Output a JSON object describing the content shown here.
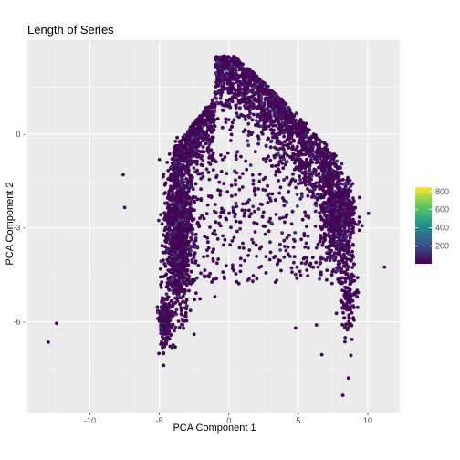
{
  "chart_data": {
    "type": "scatter",
    "title": "Length of Series",
    "xlabel": "PCA Component 1",
    "ylabel": "PCA Component 2",
    "xlim": [
      -14.5,
      12.3
    ],
    "ylim": [
      -8.9,
      3.0
    ],
    "x_ticks": [
      -10,
      -5,
      0,
      5,
      10
    ],
    "y_ticks": [
      -6,
      -3,
      0
    ],
    "y_tick_labels": [
      "-6 -",
      "-3 -",
      "0 -"
    ],
    "grid": true,
    "panel_background": "#ebebeb",
    "colorbar": {
      "palette": "viridis",
      "range": [
        1,
        850
      ],
      "ticks": [
        200,
        400,
        600,
        800
      ],
      "placement": "right"
    },
    "colors": {
      "low": "#440154",
      "mid_low": "#3b528b",
      "mid": "#21908c",
      "mid_high": "#5dc863",
      "high": "#fde725"
    },
    "isolated_points": [
      {
        "x": -13.0,
        "y": -6.65,
        "v": 5
      },
      {
        "x": -12.4,
        "y": -6.05,
        "v": 5
      },
      {
        "x": -7.5,
        "y": -2.35,
        "v": 5
      },
      {
        "x": -7.6,
        "y": -1.3,
        "v": 5
      },
      {
        "x": 6.3,
        "y": -6.1,
        "v": 5
      },
      {
        "x": 6.7,
        "y": -7.05,
        "v": 5
      },
      {
        "x": 8.2,
        "y": -8.35,
        "v": 5
      },
      {
        "x": 8.6,
        "y": -7.8,
        "v": 5
      },
      {
        "x": 11.2,
        "y": -4.25,
        "v": 5
      },
      {
        "x": 4.8,
        "y": -6.2,
        "v": 5
      },
      {
        "x": -2.5,
        "y": -6.4,
        "v": 5
      },
      {
        "x": -1.0,
        "y": -5.2,
        "v": 5
      }
    ],
    "density_regions": [
      {
        "note": "dense core arc",
        "x_center": 0.5,
        "y_center": 0.5,
        "spread_x": 4.0,
        "spread_y": 1.1,
        "count": 2600
      },
      {
        "note": "left arm",
        "x_center": -3.6,
        "y_center": -3.2,
        "spread_x": 0.8,
        "spread_y": 2.0,
        "count": 1100
      },
      {
        "note": "lower left tail",
        "x_center": -4.6,
        "y_center": -6.0,
        "spread_x": 0.45,
        "spread_y": 0.7,
        "count": 220
      },
      {
        "note": "right arm",
        "x_center": 7.9,
        "y_center": -2.6,
        "spread_x": 1.0,
        "spread_y": 1.3,
        "count": 650
      },
      {
        "note": "right lower tail",
        "x_center": 8.6,
        "y_center": -5.2,
        "spread_x": 0.5,
        "spread_y": 1.0,
        "count": 130
      },
      {
        "note": "interior sparse",
        "x_center": 3.5,
        "y_center": -2.8,
        "spread_x": 3.0,
        "spread_y": 1.5,
        "count": 500
      }
    ]
  }
}
